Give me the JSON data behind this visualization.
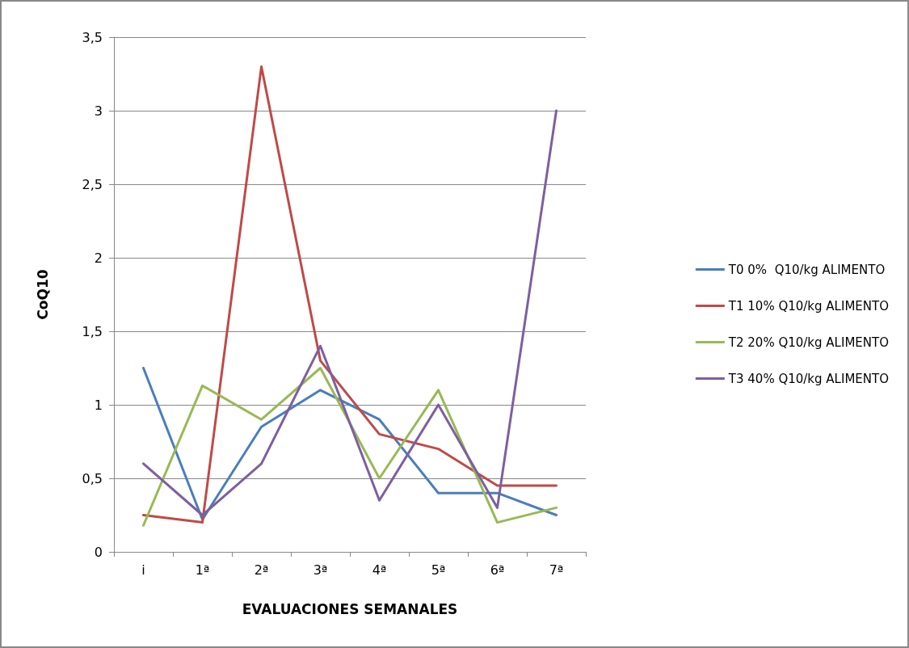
{
  "chart_data": {
    "type": "line",
    "xlabel": "EVALUACIONES SEMANALES",
    "ylabel": "CoQ10",
    "categories": [
      "i",
      "1ª",
      "2ª",
      "3ª",
      "4ª",
      "5ª",
      "6ª",
      "7ª"
    ],
    "series": [
      {
        "name": "T0 0%  Q10/kg ALIMENTO",
        "color": "#4a7ebb",
        "values": [
          1.25,
          0.22,
          0.85,
          1.1,
          0.9,
          0.4,
          0.4,
          0.25
        ]
      },
      {
        "name": "T1 10% Q10/kg ALIMENTO",
        "color": "#be4b48",
        "values": [
          0.25,
          0.2,
          3.3,
          1.3,
          0.8,
          0.7,
          0.45,
          0.45
        ]
      },
      {
        "name": "T2 20% Q10/kg ALIMENTO",
        "color": "#98b954",
        "values": [
          0.18,
          1.13,
          0.9,
          1.25,
          0.5,
          1.1,
          0.2,
          0.3
        ]
      },
      {
        "name": "T3 40% Q10/kg ALIMENTO",
        "color": "#7d5fa0",
        "values": [
          0.6,
          0.25,
          0.6,
          1.4,
          0.35,
          1.0,
          0.3,
          3.0
        ]
      }
    ],
    "ylim": [
      0,
      3.5
    ],
    "yticks": [
      0,
      {
        "value": 0.5,
        "label": "0,5"
      },
      1,
      {
        "value": 1.5,
        "label": "1,5"
      },
      2,
      {
        "value": 2.5,
        "label": "2,5"
      },
      3,
      {
        "value": 3.5,
        "label": "3,5"
      }
    ],
    "grid": "y",
    "legend": "right",
    "marker": "none",
    "line_style": "solid"
  }
}
